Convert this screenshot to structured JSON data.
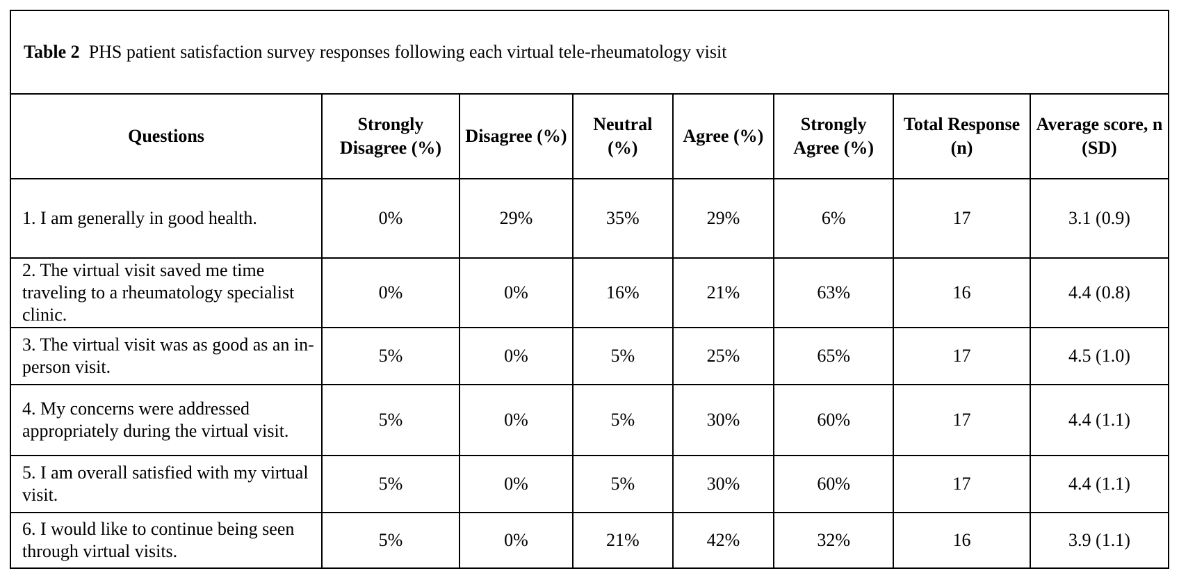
{
  "table": {
    "caption_label": "Table 2",
    "caption_text": "PHS patient satisfaction survey responses following each virtual tele-rheumatology visit",
    "headers": [
      "Questions",
      "Strongly Disagree (%)",
      "Disagree (%)",
      "Neutral (%)",
      "Agree (%)",
      "Strongly Agree (%)",
      "Total Response (n)",
      "Average score, n (SD)"
    ],
    "rows": [
      [
        "1. I am generally in good health.",
        "0%",
        "29%",
        "35%",
        "29%",
        "6%",
        "17",
        "3.1 (0.9)"
      ],
      [
        "2. The virtual visit saved me time traveling to a rheumatology specialist clinic.",
        "0%",
        "0%",
        "16%",
        "21%",
        "63%",
        "16",
        "4.4 (0.8)"
      ],
      [
        "3. The virtual visit was as good as an in-person visit.",
        "5%",
        "0%",
        "5%",
        "25%",
        "65%",
        "17",
        "4.5 (1.0)"
      ],
      [
        "4. My concerns were addressed appropriately during the virtual visit.",
        "5%",
        "0%",
        "5%",
        "30%",
        "60%",
        "17",
        "4.4 (1.1)"
      ],
      [
        "5. I am overall satisfied with my virtual visit.",
        "5%",
        "0%",
        "5%",
        "30%",
        "60%",
        "17",
        "4.4 (1.1)"
      ],
      [
        "6. I would like to continue being seen through virtual visits.",
        "5%",
        "0%",
        "21%",
        "42%",
        "32%",
        "16",
        "3.9 (1.1)"
      ]
    ]
  }
}
